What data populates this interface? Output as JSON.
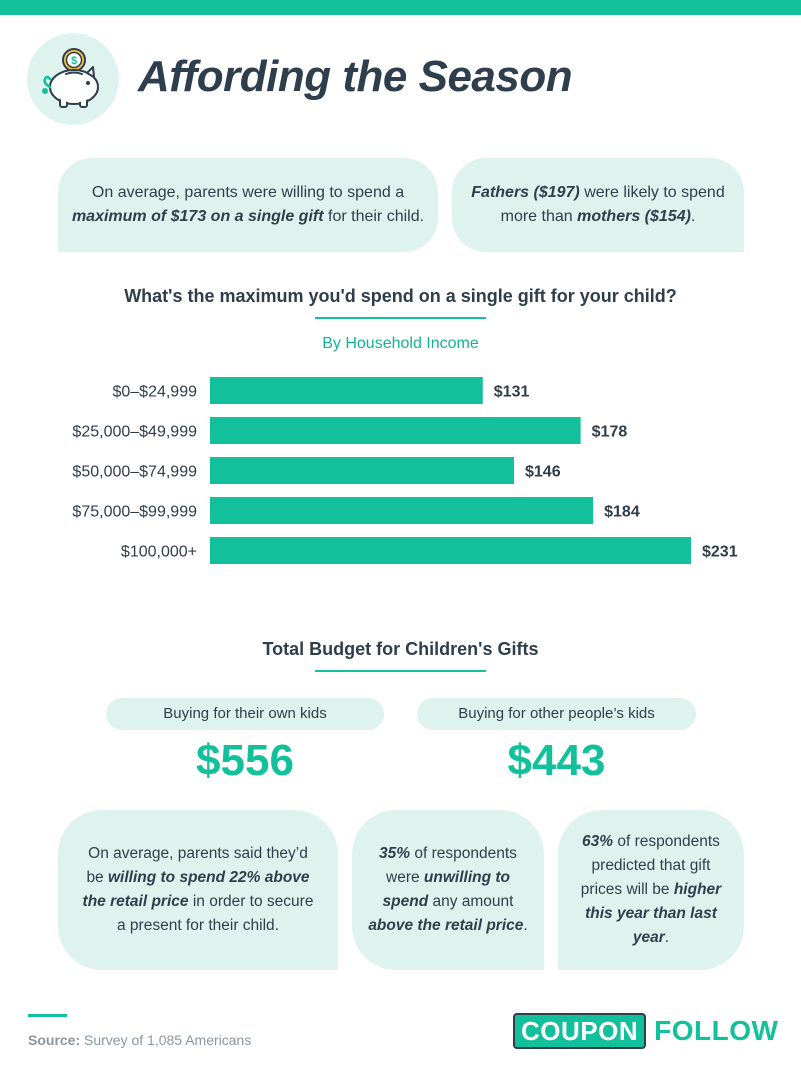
{
  "title": "Affording the Season",
  "colors": {
    "accent": "#12c19b",
    "bubble": "#dff3ee",
    "text": "#2f3e4c"
  },
  "logo_icon": "piggy-bank-icon",
  "facts_top": {
    "left": {
      "t1": "On average, parents were willing to spend a ",
      "b1": "maximum of $173 on a single gift",
      "t2": " for their child."
    },
    "right": {
      "b1": "Fathers ($197)",
      "t1": " were likely to spend more than ",
      "b2": "mothers ($154)",
      "t2": "."
    }
  },
  "chart_data": {
    "type": "bar",
    "orientation": "horizontal",
    "title": "What's the maximum you'd spend on a single gift for your child?",
    "subtitle": "By Household Income",
    "categories": [
      "$0–$24,999",
      "$25,000–$49,999",
      "$50,000–$74,999",
      "$75,000–$99,999",
      "$100,000+"
    ],
    "values": [
      131,
      178,
      146,
      184,
      231
    ],
    "value_labels": [
      "$131",
      "$178",
      "$146",
      "$184",
      "$231"
    ],
    "xlim": [
      0,
      231
    ],
    "xlabel": "",
    "ylabel": "",
    "grid": false
  },
  "budget": {
    "title": "Total Budget for Children's Gifts",
    "own": {
      "label": "Buying for their own kids",
      "value": "$556"
    },
    "other": {
      "label": "Buying for other people’s kids",
      "value": "$443"
    }
  },
  "facts_bottom": {
    "b3": {
      "t1": "On average, parents said they’d be ",
      "b1": "willing to spend 22% above the retail price",
      "t2": " in order to secure a present for their child."
    },
    "b4": {
      "b1": "35%",
      "t1": " of respondents were ",
      "b2": "unwilling to spend",
      "t2": " any amount ",
      "b3": "above the retail price",
      "t3": "."
    },
    "b5": {
      "b1": "63%",
      "t1": " of respondents predicted that gift prices will be ",
      "b2": "higher this year than last year",
      "t2": "."
    }
  },
  "source": {
    "label": "Source:",
    "text": " Survey of 1,085 Americans"
  },
  "brand": {
    "box": "COUPON",
    "word": "FOLLOW"
  }
}
